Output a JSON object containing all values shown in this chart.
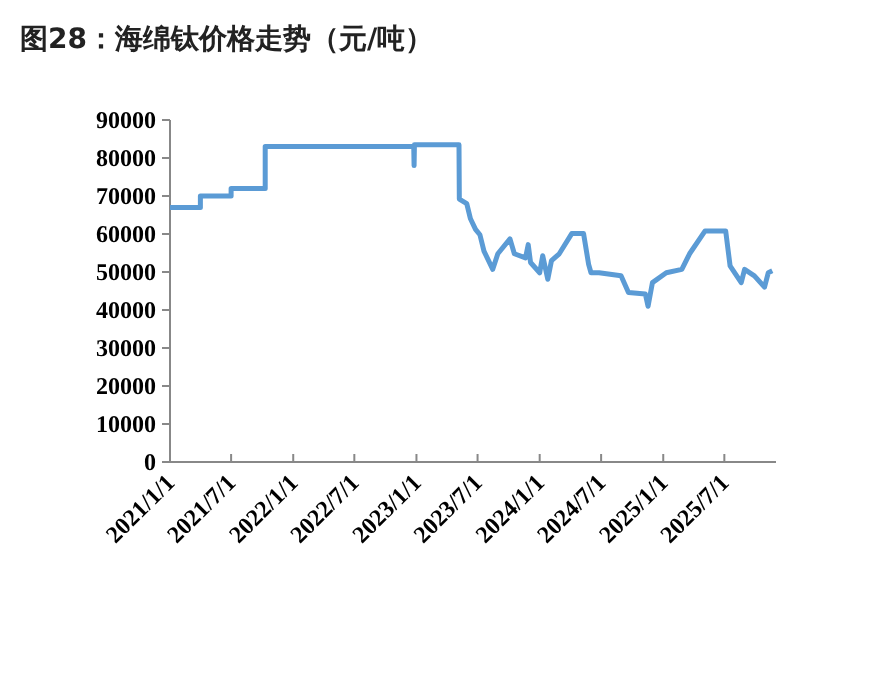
{
  "chart_data": {
    "type": "line",
    "title": "图28：海绵钛价格走势（元/吨）",
    "x": [
      "2021-01-01",
      "2021-04-01",
      "2021-04-01",
      "2021-07-01",
      "2021-07-01",
      "2021-10-10",
      "2021-10-10",
      "2022-12-24",
      "2022-12-25",
      "2022-12-26",
      "2023-05-07",
      "2023-05-08",
      "2023-05-30",
      "2023-06-10",
      "2023-06-25",
      "2023-07-08",
      "2023-07-20",
      "2023-08-15",
      "2023-08-30",
      "2023-10-05",
      "2023-10-18",
      "2023-11-20",
      "2023-11-28",
      "2023-12-05",
      "2024-01-01",
      "2024-01-10",
      "2024-01-25",
      "2024-02-05",
      "2024-02-28",
      "2024-04-05",
      "2024-05-10",
      "2024-05-25",
      "2024-06-01",
      "2024-06-25",
      "2024-08-29",
      "2024-09-20",
      "2024-11-09",
      "2024-11-17",
      "2024-11-30",
      "2025-01-10",
      "2025-02-25",
      "2025-03-20",
      "2025-05-05",
      "2025-07-05",
      "2025-07-18",
      "2025-08-20",
      "2025-08-30",
      "2025-09-28",
      "2025-10-28",
      "2025-11-08",
      "2025-11-20"
    ],
    "series": [
      {
        "color": "#5b9bd5",
        "values": [
          67000,
          67000,
          70000,
          70000,
          72000,
          72000,
          83000,
          83000,
          78000,
          83500,
          83500,
          69200,
          68000,
          64000,
          61200,
          59800,
          55500,
          50700,
          54800,
          58700,
          54800,
          53700,
          57200,
          52500,
          49800,
          54300,
          48100,
          53000,
          54800,
          60100,
          60100,
          52000,
          49800,
          49800,
          49000,
          44600,
          44200,
          41000,
          47200,
          49800,
          50700,
          54800,
          60800,
          60800,
          51600,
          47200,
          50700,
          49000,
          46000,
          49800,
          50300
        ]
      }
    ],
    "xlim": [
      "2021-01-01",
      "2025-12-01"
    ],
    "xticks": [
      {
        "value": "2021-01-01",
        "label": "2021/1/1"
      },
      {
        "value": "2021-07-01",
        "label": "2021/7/1"
      },
      {
        "value": "2022-01-01",
        "label": "2022/1/1"
      },
      {
        "value": "2022-07-01",
        "label": "2022/7/1"
      },
      {
        "value": "2023-01-01",
        "label": "2023/1/1"
      },
      {
        "value": "2023-07-01",
        "label": "2023/7/1"
      },
      {
        "value": "2024-01-01",
        "label": "2024/1/1"
      },
      {
        "value": "2024-07-01",
        "label": "2024/7/1"
      },
      {
        "value": "2025-01-01",
        "label": "2025/1/1"
      },
      {
        "value": "2025-07-01",
        "label": "2025/7/1"
      }
    ],
    "ylim": [
      0,
      90000
    ],
    "yticks": [
      0,
      10000,
      20000,
      30000,
      40000,
      50000,
      60000,
      70000,
      80000,
      90000
    ],
    "grid": false,
    "marker": "none",
    "line_style": "solid"
  }
}
